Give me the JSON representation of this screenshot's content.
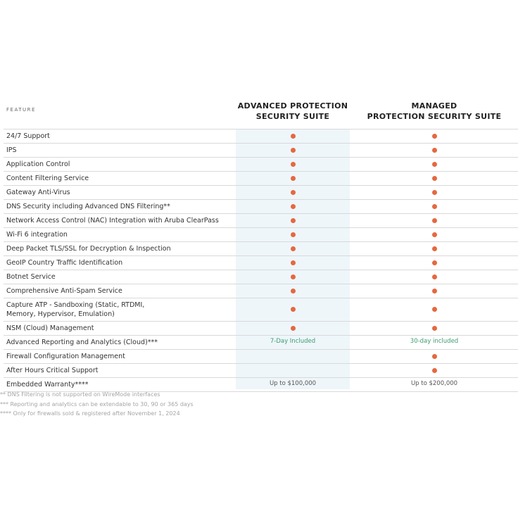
{
  "table": {
    "feature_header": "FEATURE",
    "columns": [
      {
        "lines": [
          "ADVANCED PROTECTION",
          "SECURITY SUITE"
        ],
        "highlight": "#eef6fa"
      },
      {
        "lines": [
          "MANAGED",
          "PROTECTION SECURITY SUITE"
        ],
        "highlight": null
      }
    ],
    "dot_color": "#e5683f",
    "rows": [
      {
        "feature": [
          "24/7 Support"
        ],
        "cells": [
          true,
          true
        ]
      },
      {
        "feature": [
          "IPS"
        ],
        "cells": [
          true,
          true
        ]
      },
      {
        "feature": [
          "Application Control"
        ],
        "cells": [
          true,
          true
        ]
      },
      {
        "feature": [
          "Content Filtering Service"
        ],
        "cells": [
          true,
          true
        ]
      },
      {
        "feature": [
          "Gateway Anti-Virus"
        ],
        "cells": [
          true,
          true
        ]
      },
      {
        "feature": [
          "DNS Security including Advanced DNS Filtering**"
        ],
        "cells": [
          true,
          true
        ]
      },
      {
        "feature": [
          "Network Access Control (NAC) Integration with Aruba ClearPass"
        ],
        "cells": [
          true,
          true
        ]
      },
      {
        "feature": [
          "Wi-Fi 6 integration"
        ],
        "cells": [
          true,
          true
        ]
      },
      {
        "feature": [
          "Deep Packet TLS/SSL for Decryption & Inspection"
        ],
        "cells": [
          true,
          true
        ]
      },
      {
        "feature": [
          "GeoIP Country Traffic Identification"
        ],
        "cells": [
          true,
          true
        ]
      },
      {
        "feature": [
          "Botnet Service"
        ],
        "cells": [
          true,
          true
        ]
      },
      {
        "feature": [
          "Comprehensive Anti-Spam Service"
        ],
        "cells": [
          true,
          true
        ]
      },
      {
        "feature": [
          "Capture ATP - Sandboxing (Static, RTDMI,",
          "Memory, Hypervisor, Emulation)"
        ],
        "cells": [
          true,
          true
        ]
      },
      {
        "feature": [
          "NSM (Cloud) Management"
        ],
        "cells": [
          true,
          true
        ]
      },
      {
        "feature": [
          "Advanced Reporting and Analytics (Cloud)***"
        ],
        "cells": [
          {
            "text": "7-Day Included",
            "color": "#3d9b70"
          },
          {
            "text": "30-day included",
            "color": "#3d9b70"
          }
        ]
      },
      {
        "feature": [
          "Firewall Configuration Management"
        ],
        "cells": [
          null,
          true
        ]
      },
      {
        "feature": [
          "After Hours Critical Support"
        ],
        "cells": [
          null,
          true
        ]
      },
      {
        "feature": [
          "Embedded Warranty****"
        ],
        "cells": [
          {
            "text": "Up to $100,000",
            "color": "#555555"
          },
          {
            "text": "Up to $200,000",
            "color": "#555555"
          }
        ]
      }
    ],
    "footnotes": [
      "** DNS Filtering is not supported on WireMode interfaces",
      "*** Reporting and analytics can be extendable to 30, 90 or 365 days",
      "**** Only for firewalls sold & registered after November 1, 2024"
    ]
  }
}
